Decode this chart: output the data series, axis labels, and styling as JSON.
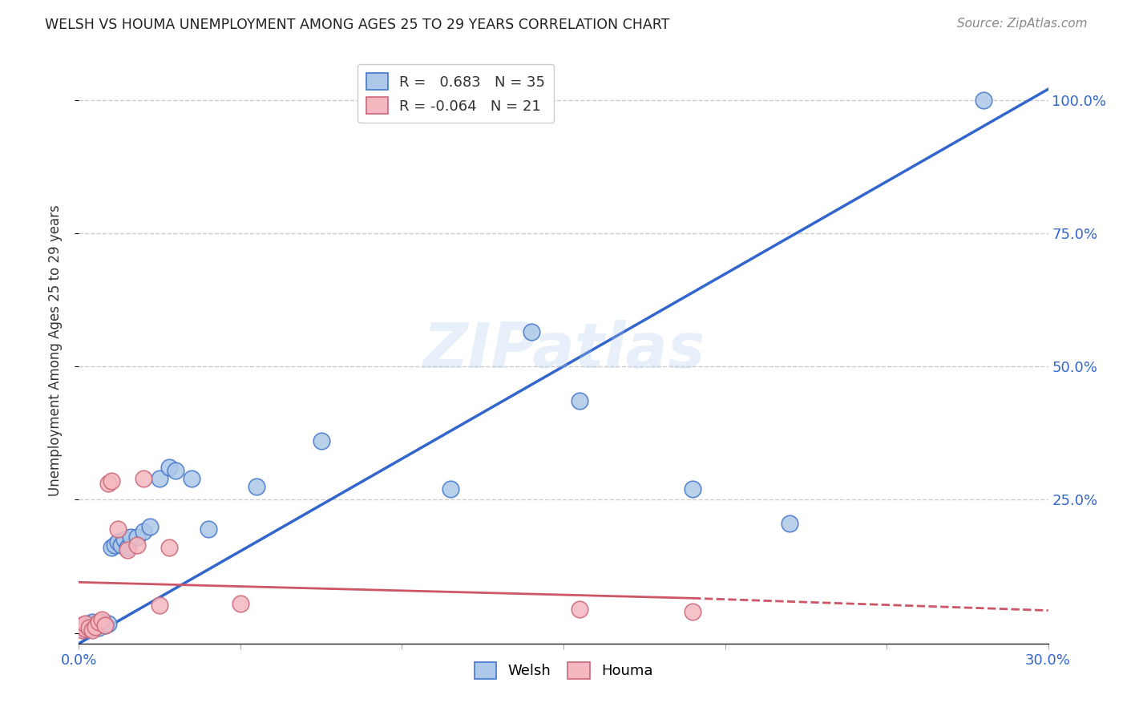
{
  "title": "WELSH VS HOUMA UNEMPLOYMENT AMONG AGES 25 TO 29 YEARS CORRELATION CHART",
  "source": "Source: ZipAtlas.com",
  "ylabel": "Unemployment Among Ages 25 to 29 years",
  "xlim": [
    0.0,
    0.3
  ],
  "ylim": [
    -0.02,
    1.08
  ],
  "xtick_positions": [
    0.0,
    0.05,
    0.1,
    0.15,
    0.2,
    0.25,
    0.3
  ],
  "xticklabels": [
    "0.0%",
    "",
    "",
    "",
    "",
    "",
    "30.0%"
  ],
  "ytick_positions": [
    0.0,
    0.25,
    0.5,
    0.75,
    1.0
  ],
  "yticklabels_right": [
    "",
    "25.0%",
    "50.0%",
    "75.0%",
    "100.0%"
  ],
  "welsh_R": "0.683",
  "welsh_N": "35",
  "houma_R": "-0.064",
  "houma_N": "21",
  "welsh_color": "#adc8e8",
  "welsh_edge_color": "#4477cc",
  "welsh_line_color": "#3366cc",
  "houma_color": "#f5b8c0",
  "houma_edge_color": "#cc6677",
  "houma_line_color": "#cc5566",
  "watermark": "ZIPatlas",
  "grid_color": "#cccccc",
  "welsh_line_x0": 0.0,
  "welsh_line_y0": -0.02,
  "welsh_line_x1": 0.3,
  "welsh_line_y1": 1.02,
  "houma_line_x0": 0.0,
  "houma_line_y0": 0.095,
  "houma_line_solid_x1": 0.19,
  "houma_line_solid_y1": 0.065,
  "houma_line_dash_x1": 0.3,
  "houma_line_dash_y1": 0.042,
  "welsh_x": [
    0.001,
    0.002,
    0.002,
    0.003,
    0.003,
    0.004,
    0.004,
    0.005,
    0.006,
    0.007,
    0.008,
    0.009,
    0.01,
    0.011,
    0.012,
    0.013,
    0.014,
    0.015,
    0.016,
    0.018,
    0.02,
    0.022,
    0.025,
    0.028,
    0.03,
    0.035,
    0.04,
    0.055,
    0.075,
    0.115,
    0.14,
    0.155,
    0.19,
    0.22,
    0.28
  ],
  "welsh_y": [
    0.01,
    0.005,
    0.008,
    0.012,
    0.018,
    0.01,
    0.02,
    0.015,
    0.01,
    0.02,
    0.015,
    0.018,
    0.16,
    0.165,
    0.17,
    0.165,
    0.175,
    0.16,
    0.18,
    0.18,
    0.19,
    0.2,
    0.29,
    0.31,
    0.305,
    0.29,
    0.195,
    0.275,
    0.36,
    0.27,
    0.565,
    0.435,
    0.27,
    0.205,
    1.0
  ],
  "houma_x": [
    0.001,
    0.001,
    0.002,
    0.002,
    0.003,
    0.004,
    0.005,
    0.006,
    0.007,
    0.008,
    0.009,
    0.01,
    0.012,
    0.015,
    0.018,
    0.02,
    0.025,
    0.028,
    0.05,
    0.155,
    0.19
  ],
  "houma_y": [
    0.005,
    0.015,
    0.008,
    0.018,
    0.01,
    0.005,
    0.012,
    0.02,
    0.025,
    0.015,
    0.28,
    0.285,
    0.195,
    0.155,
    0.165,
    0.29,
    0.052,
    0.16,
    0.055,
    0.045,
    0.04
  ]
}
